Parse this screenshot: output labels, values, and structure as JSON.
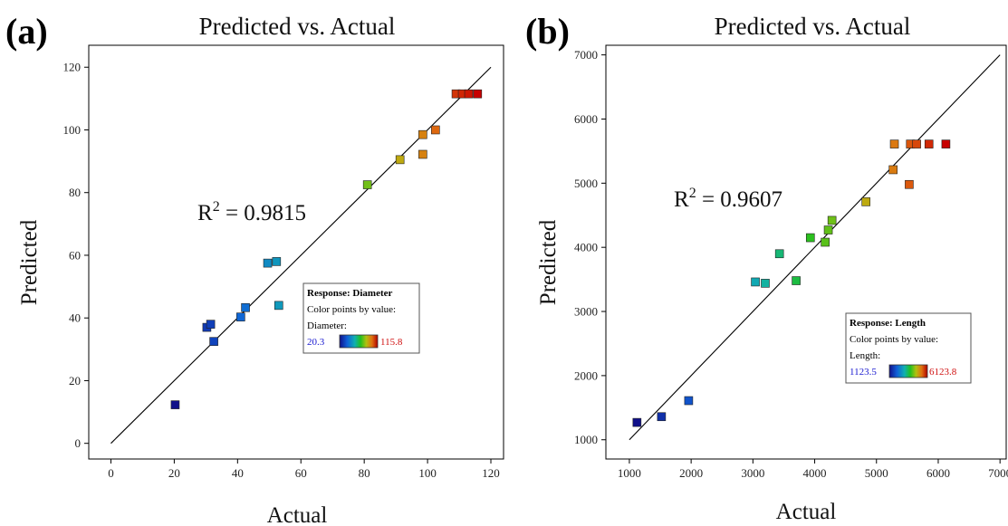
{
  "chart_data": [
    {
      "type": "scatter",
      "panel_label": "(a)",
      "title": "Predicted vs. Actual",
      "xlabel": "Actual",
      "ylabel": "Predicted",
      "xlim": [
        -7,
        124
      ],
      "ylim": [
        -5,
        127
      ],
      "xticks": [
        0,
        20,
        40,
        60,
        80,
        100,
        120
      ],
      "yticks": [
        0,
        20,
        40,
        60,
        80,
        100,
        120
      ],
      "grid": false,
      "fit_line": [
        [
          0,
          0
        ],
        [
          120,
          120
        ]
      ],
      "r2_base": "R",
      "r2_sup": "2",
      "r2_value": " = 0.9815",
      "legend": {
        "placement": "lower-right",
        "title": "Response: Diameter",
        "subtitle": "Color points by value:",
        "var_label": "Diameter:",
        "min": "20.3",
        "max": "115.8",
        "min_value": 20.3,
        "max_value": 115.8
      },
      "points": [
        {
          "x": 20.3,
          "y": 12.3
        },
        {
          "x": 30.3,
          "y": 37
        },
        {
          "x": 31.5,
          "y": 38
        },
        {
          "x": 32.5,
          "y": 32.5
        },
        {
          "x": 41,
          "y": 40.3
        },
        {
          "x": 42.5,
          "y": 43.3
        },
        {
          "x": 49.5,
          "y": 57.5
        },
        {
          "x": 52.3,
          "y": 58
        },
        {
          "x": 53,
          "y": 44
        },
        {
          "x": 81,
          "y": 82.5
        },
        {
          "x": 91.3,
          "y": 90.5
        },
        {
          "x": 98.5,
          "y": 92.2
        },
        {
          "x": 98.5,
          "y": 98.5
        },
        {
          "x": 102.5,
          "y": 100
        },
        {
          "x": 109,
          "y": 111.5
        },
        {
          "x": 111,
          "y": 111.5
        },
        {
          "x": 113,
          "y": 111.5
        },
        {
          "x": 115.8,
          "y": 111.5
        }
      ]
    },
    {
      "type": "scatter",
      "panel_label": "(b)",
      "title": "Predicted vs. Actual",
      "xlabel": "Actual",
      "ylabel": "Predicted",
      "xlim": [
        620,
        7100
      ],
      "ylim": [
        700,
        7150
      ],
      "xticks": [
        1000,
        2000,
        3000,
        4000,
        5000,
        6000,
        7000
      ],
      "yticks": [
        1000,
        2000,
        3000,
        4000,
        5000,
        6000,
        7000
      ],
      "grid": false,
      "fit_line": [
        [
          1000,
          1000
        ],
        [
          7000,
          7000
        ]
      ],
      "r2_base": "R",
      "r2_sup": "2",
      "r2_value": " = 0.9607",
      "legend": {
        "placement": "lower-right",
        "title": "Response: Length",
        "subtitle": "Color points by value:",
        "var_label": "Length:",
        "min": "1123.5",
        "max": "6123.8",
        "min_value": 1123.5,
        "max_value": 6123.8
      },
      "points": [
        {
          "x": 1123.5,
          "y": 1270
        },
        {
          "x": 1520,
          "y": 1360
        },
        {
          "x": 1960,
          "y": 1610
        },
        {
          "x": 3040,
          "y": 3460
        },
        {
          "x": 3200,
          "y": 3440
        },
        {
          "x": 3430,
          "y": 3900
        },
        {
          "x": 3700,
          "y": 3480
        },
        {
          "x": 3930,
          "y": 4150
        },
        {
          "x": 4170,
          "y": 4080
        },
        {
          "x": 4220,
          "y": 4270
        },
        {
          "x": 4280,
          "y": 4420
        },
        {
          "x": 4830,
          "y": 4710
        },
        {
          "x": 5270,
          "y": 5210
        },
        {
          "x": 5290,
          "y": 5610
        },
        {
          "x": 5530,
          "y": 4980
        },
        {
          "x": 5550,
          "y": 5610
        },
        {
          "x": 5650,
          "y": 5610
        },
        {
          "x": 5850,
          "y": 5610
        },
        {
          "x": 6123.8,
          "y": 5610
        }
      ]
    }
  ]
}
